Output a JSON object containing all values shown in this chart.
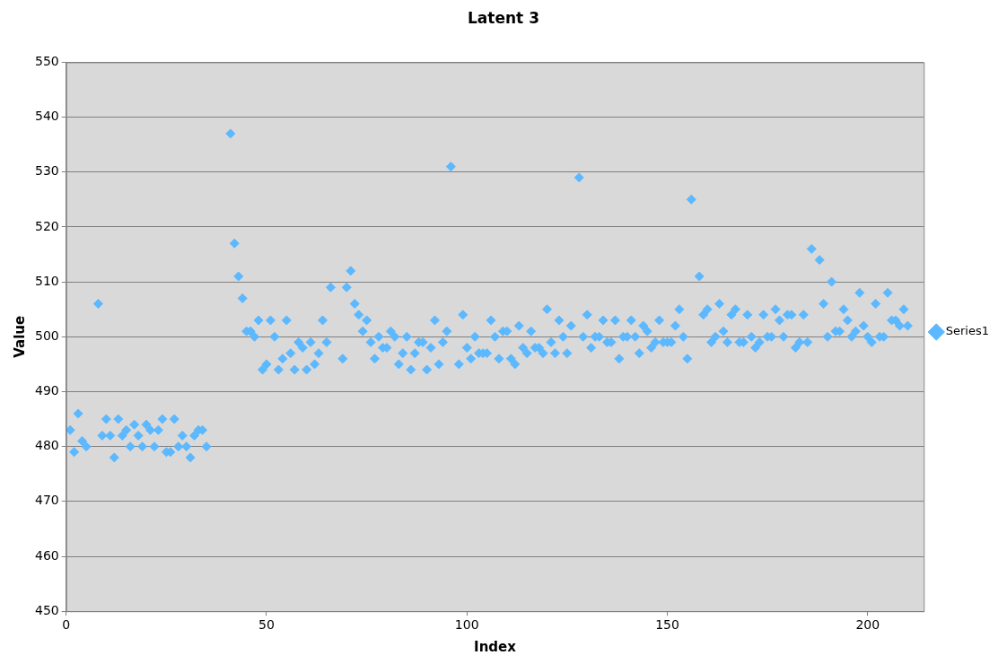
{
  "chart_data": {
    "type": "scatter",
    "title": "Latent 3",
    "xlabel": "Index",
    "ylabel": "Value",
    "x": [
      1,
      2,
      3,
      4,
      5,
      8,
      9,
      10,
      11,
      12,
      13,
      14,
      15,
      16,
      17,
      18,
      19,
      20,
      21,
      22,
      23,
      24,
      25,
      26,
      27,
      28,
      29,
      30,
      31,
      32,
      33,
      34,
      35,
      41,
      42,
      43,
      44,
      45,
      46,
      47,
      48,
      49,
      50,
      51,
      52,
      53,
      54,
      55,
      56,
      57,
      58,
      59,
      60,
      61,
      62,
      63,
      64,
      65,
      66,
      69,
      70,
      71,
      72,
      73,
      74,
      75,
      76,
      77,
      78,
      79,
      80,
      81,
      82,
      83,
      84,
      85,
      86,
      87,
      88,
      89,
      90,
      91,
      92,
      93,
      94,
      95,
      96,
      98,
      99,
      100,
      101,
      102,
      103,
      104,
      105,
      106,
      107,
      108,
      109,
      110,
      111,
      112,
      113,
      114,
      115,
      116,
      117,
      118,
      119,
      120,
      121,
      122,
      123,
      124,
      125,
      126,
      128,
      129,
      130,
      131,
      132,
      133,
      134,
      135,
      136,
      137,
      138,
      139,
      140,
      141,
      142,
      143,
      144,
      145,
      146,
      147,
      148,
      149,
      150,
      151,
      152,
      153,
      154,
      155,
      156,
      158,
      159,
      160,
      161,
      162,
      163,
      164,
      165,
      166,
      167,
      168,
      169,
      170,
      171,
      172,
      173,
      174,
      175,
      176,
      177,
      178,
      179,
      180,
      181,
      182,
      183,
      184,
      185,
      186,
      188,
      189,
      190,
      191,
      192,
      193,
      194,
      195,
      196,
      197,
      198,
      199,
      200,
      201,
      202,
      203,
      204,
      205,
      206,
      207,
      208,
      209,
      210
    ],
    "series": [
      {
        "name": "Series1",
        "color": "#5cb8ff",
        "values": [
          483,
          479,
          486,
          481,
          480,
          506,
          482,
          485,
          482,
          478,
          485,
          482,
          483,
          480,
          484,
          482,
          480,
          484,
          483,
          480,
          483,
          485,
          479,
          479,
          485,
          480,
          482,
          480,
          478,
          482,
          483,
          483,
          480,
          537,
          517,
          511,
          507,
          501,
          501,
          500,
          503,
          494,
          495,
          503,
          500,
          494,
          496,
          503,
          497,
          494,
          499,
          498,
          494,
          499,
          495,
          497,
          503,
          499,
          509,
          496,
          509,
          512,
          506,
          504,
          501,
          503,
          499,
          496,
          500,
          498,
          498,
          501,
          500,
          495,
          497,
          500,
          494,
          497,
          499,
          499,
          494,
          498,
          503,
          495,
          499,
          501,
          531,
          495,
          504,
          498,
          496,
          500,
          497,
          497,
          497,
          503,
          500,
          496,
          501,
          501,
          496,
          495,
          502,
          498,
          497,
          501,
          498,
          498,
          497,
          505,
          499,
          497,
          503,
          500,
          497,
          502,
          529,
          500,
          504,
          498,
          500,
          500,
          503,
          499,
          499,
          503,
          496,
          500,
          500,
          503,
          500,
          497,
          502,
          501,
          498,
          499,
          503,
          499,
          499,
          499,
          502,
          505,
          500,
          496,
          525,
          511,
          504,
          505,
          499,
          500,
          506,
          501,
          499,
          504,
          505,
          499,
          499,
          504,
          500,
          498,
          499,
          504,
          500,
          500,
          505,
          503,
          500,
          504,
          504,
          498,
          499,
          504,
          499,
          516,
          514,
          506,
          500,
          510,
          501,
          501,
          505,
          503,
          500,
          501,
          508,
          502,
          500,
          499,
          506,
          500,
          500,
          508,
          503,
          503,
          502,
          505,
          502
        ]
      }
    ],
    "xlim": [
      0,
      214
    ],
    "xticks": [
      0,
      50,
      100,
      150,
      200
    ],
    "ylim": [
      450,
      550
    ],
    "yticks": [
      450,
      460,
      470,
      480,
      490,
      500,
      510,
      520,
      530,
      540,
      550
    ],
    "grid": "y",
    "legend": "right",
    "marker": "diamond"
  }
}
